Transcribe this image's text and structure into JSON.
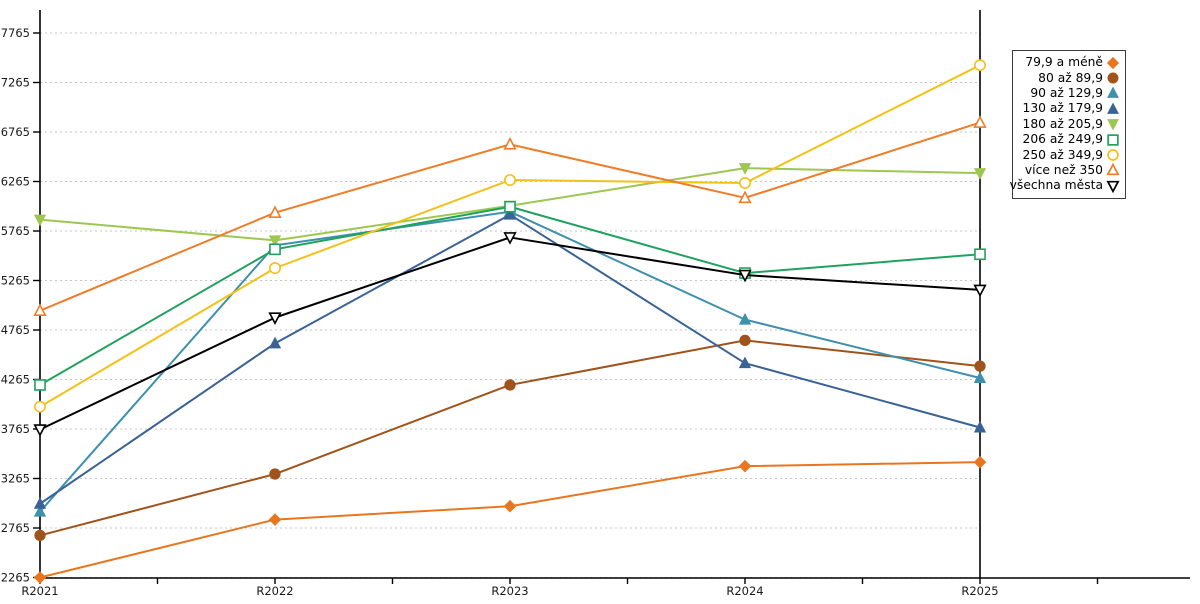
{
  "chart_data": {
    "type": "line",
    "title": "",
    "xlabel": "",
    "ylabel": "",
    "categories": [
      "R2021",
      "R2022",
      "R2023",
      "R2024",
      "R2025"
    ],
    "yticks": [
      2265,
      2765,
      3265,
      3765,
      4265,
      4765,
      5265,
      5765,
      6265,
      6765,
      7265,
      7765
    ],
    "ylim": [
      2265,
      7765
    ],
    "grid": "horizontal-dashed",
    "legend_position": "right-outside-boxed",
    "series": [
      {
        "name": "79,9 a méně",
        "color": "#E8761F",
        "marker": "diamond",
        "marker_fill": "filled",
        "values": [
          2265,
          2850,
          2985,
          3390,
          3430
        ]
      },
      {
        "name": "80 až 89,9",
        "color": "#A0531B",
        "marker": "circle",
        "marker_fill": "filled",
        "values": [
          2690,
          3310,
          4210,
          4660,
          4400
        ]
      },
      {
        "name": "90 až 129,9",
        "color": "#3F90AC",
        "marker": "triangle-up",
        "marker_fill": "filled",
        "values": [
          2930,
          5620,
          5960,
          4870,
          4280
        ]
      },
      {
        "name": "130 až 179,9",
        "color": "#3A6395",
        "marker": "triangle-up",
        "marker_fill": "filled",
        "values": [
          3010,
          4630,
          5930,
          4430,
          3780
        ]
      },
      {
        "name": "180 až 205,9",
        "color": "#9DC750",
        "marker": "triangle-down",
        "marker_fill": "filled",
        "values": [
          5880,
          5670,
          6020,
          6400,
          6350
        ]
      },
      {
        "name": "206 až 249,9",
        "color": "#21A15E",
        "marker": "square",
        "marker_fill": "open",
        "values": [
          4210,
          5580,
          6010,
          5340,
          5530
        ]
      },
      {
        "name": "250 až 349,9",
        "color": "#F3C117",
        "marker": "circle",
        "marker_fill": "open",
        "values": [
          3990,
          5390,
          6280,
          6250,
          7440
        ]
      },
      {
        "name": "více než 350",
        "color": "#EF7D28",
        "marker": "triangle-up",
        "marker_fill": "open",
        "values": [
          4960,
          5950,
          6640,
          6100,
          6860
        ]
      },
      {
        "name": "všechna města",
        "color": "#000000",
        "marker": "triangle-down",
        "marker_fill": "open",
        "values": [
          3760,
          4890,
          5700,
          5320,
          5170
        ]
      }
    ],
    "colors": {
      "grid": "#C6C6C6",
      "axis": "#000000",
      "tick_label": "#1a1a1a"
    }
  }
}
